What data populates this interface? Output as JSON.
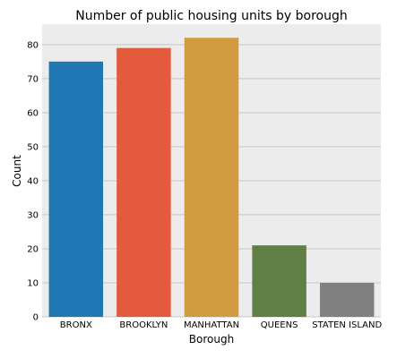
{
  "chart_data": {
    "type": "bar",
    "title": "Number of public housing units by borough",
    "xlabel": "Borough",
    "ylabel": "Count",
    "categories": [
      "BRONX",
      "BROOKLYN",
      "MANHATTAN",
      "QUEENS",
      "STATEN ISLAND"
    ],
    "values": [
      75,
      79,
      82,
      21,
      10
    ],
    "colors": [
      "#1f77b4",
      "#e45a3d",
      "#d09c3f",
      "#5f7f47",
      "#808080"
    ],
    "ylim": [
      0,
      86
    ],
    "yticks": [
      0,
      10,
      20,
      30,
      40,
      50,
      60,
      70,
      80
    ],
    "grid": true,
    "background": "#ececec"
  }
}
